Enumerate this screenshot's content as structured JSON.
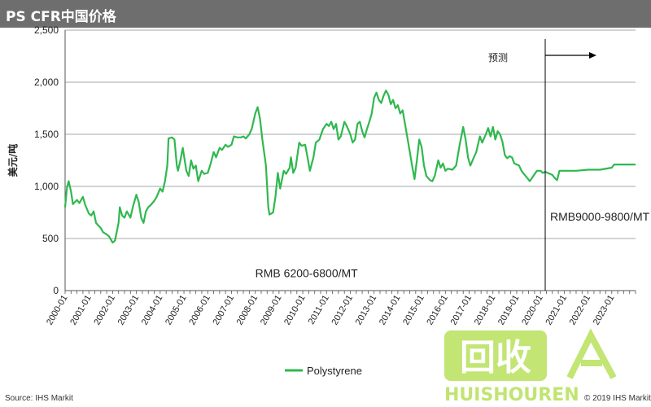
{
  "header": {
    "title": "PS CFR中国价格"
  },
  "footer": {
    "source": "Source: IHS Markit",
    "copyright": "© 2019 IHS Markit"
  },
  "watermark": {
    "text": "回收",
    "subtext": "HUISHOUREN"
  },
  "chart_data": {
    "type": "line",
    "title": "PS CFR中国价格",
    "ylabel": "美元/吨",
    "xlabel": "",
    "ylim": [
      0,
      2500
    ],
    "yticks": [
      0,
      500,
      1000,
      1500,
      2000,
      2500
    ],
    "ytick_labels": [
      "0",
      "500",
      "1,000",
      "1,500",
      "2,000",
      "2,500"
    ],
    "xlim": [
      2000.0,
      2024.0
    ],
    "xticks": [
      "2000-01",
      "2001-01",
      "2002-01",
      "2003-01",
      "2004-01",
      "2005-01",
      "2006-01",
      "2007-01",
      "2008-01",
      "2009-01",
      "2010-01",
      "2011-01",
      "2012-01",
      "2013-01",
      "2014-01",
      "2015-01",
      "2016-01",
      "2017-01",
      "2018-01",
      "2019-01",
      "2020-01",
      "2021-01",
      "2022-01",
      "2023-01"
    ],
    "gridlines": "horizontal",
    "legend": {
      "position": "bottom-center",
      "entries": [
        "Polystyrene"
      ]
    },
    "forecast_start": 2020.2,
    "annotations": {
      "forecast": "预测",
      "range_history": "RMB 6200-6800/MT",
      "range_forecast": "RMB9000-9800/MT"
    },
    "series": [
      {
        "name": "Polystyrene",
        "color": "#2fb84f",
        "points": [
          [
            2000.0,
            800
          ],
          [
            2000.08,
            990
          ],
          [
            2000.15,
            1050
          ],
          [
            2000.25,
            950
          ],
          [
            2000.33,
            830
          ],
          [
            2000.5,
            870
          ],
          [
            2000.6,
            840
          ],
          [
            2000.75,
            900
          ],
          [
            2000.85,
            820
          ],
          [
            2001.0,
            740
          ],
          [
            2001.1,
            720
          ],
          [
            2001.2,
            760
          ],
          [
            2001.3,
            650
          ],
          [
            2001.5,
            600
          ],
          [
            2001.6,
            560
          ],
          [
            2001.75,
            540
          ],
          [
            2001.85,
            520
          ],
          [
            2002.0,
            460
          ],
          [
            2002.1,
            480
          ],
          [
            2002.25,
            650
          ],
          [
            2002.3,
            800
          ],
          [
            2002.4,
            720
          ],
          [
            2002.5,
            700
          ],
          [
            2002.6,
            760
          ],
          [
            2002.75,
            700
          ],
          [
            2002.85,
            800
          ],
          [
            2003.0,
            920
          ],
          [
            2003.1,
            850
          ],
          [
            2003.2,
            700
          ],
          [
            2003.3,
            650
          ],
          [
            2003.4,
            760
          ],
          [
            2003.5,
            800
          ],
          [
            2003.6,
            820
          ],
          [
            2003.75,
            860
          ],
          [
            2003.85,
            900
          ],
          [
            2004.0,
            980
          ],
          [
            2004.1,
            950
          ],
          [
            2004.2,
            1050
          ],
          [
            2004.3,
            1200
          ],
          [
            2004.35,
            1460
          ],
          [
            2004.5,
            1470
          ],
          [
            2004.6,
            1450
          ],
          [
            2004.7,
            1200
          ],
          [
            2004.75,
            1150
          ],
          [
            2004.85,
            1250
          ],
          [
            2004.95,
            1370
          ],
          [
            2005.1,
            1150
          ],
          [
            2005.2,
            1100
          ],
          [
            2005.3,
            1250
          ],
          [
            2005.4,
            1170
          ],
          [
            2005.5,
            1200
          ],
          [
            2005.6,
            1050
          ],
          [
            2005.75,
            1150
          ],
          [
            2005.85,
            1120
          ],
          [
            2006.0,
            1130
          ],
          [
            2006.1,
            1200
          ],
          [
            2006.25,
            1330
          ],
          [
            2006.35,
            1280
          ],
          [
            2006.5,
            1370
          ],
          [
            2006.6,
            1350
          ],
          [
            2006.75,
            1400
          ],
          [
            2006.85,
            1380
          ],
          [
            2007.0,
            1400
          ],
          [
            2007.1,
            1480
          ],
          [
            2007.25,
            1470
          ],
          [
            2007.4,
            1470
          ],
          [
            2007.5,
            1480
          ],
          [
            2007.6,
            1460
          ],
          [
            2007.75,
            1500
          ],
          [
            2007.85,
            1550
          ],
          [
            2008.0,
            1700
          ],
          [
            2008.1,
            1760
          ],
          [
            2008.2,
            1650
          ],
          [
            2008.3,
            1450
          ],
          [
            2008.45,
            1200
          ],
          [
            2008.55,
            800
          ],
          [
            2008.6,
            730
          ],
          [
            2008.75,
            750
          ],
          [
            2008.85,
            900
          ],
          [
            2008.95,
            1130
          ],
          [
            2009.05,
            980
          ],
          [
            2009.2,
            1150
          ],
          [
            2009.3,
            1120
          ],
          [
            2009.45,
            1180
          ],
          [
            2009.5,
            1280
          ],
          [
            2009.6,
            1130
          ],
          [
            2009.7,
            1180
          ],
          [
            2009.85,
            1420
          ],
          [
            2009.95,
            1390
          ],
          [
            2010.1,
            1400
          ],
          [
            2010.2,
            1280
          ],
          [
            2010.3,
            1150
          ],
          [
            2010.45,
            1280
          ],
          [
            2010.55,
            1420
          ],
          [
            2010.7,
            1450
          ],
          [
            2010.85,
            1550
          ],
          [
            2011.0,
            1600
          ],
          [
            2011.1,
            1580
          ],
          [
            2011.2,
            1620
          ],
          [
            2011.3,
            1550
          ],
          [
            2011.4,
            1600
          ],
          [
            2011.5,
            1450
          ],
          [
            2011.6,
            1480
          ],
          [
            2011.75,
            1620
          ],
          [
            2011.85,
            1580
          ],
          [
            2012.0,
            1500
          ],
          [
            2012.1,
            1420
          ],
          [
            2012.2,
            1450
          ],
          [
            2012.3,
            1600
          ],
          [
            2012.4,
            1620
          ],
          [
            2012.5,
            1530
          ],
          [
            2012.6,
            1470
          ],
          [
            2012.7,
            1550
          ],
          [
            2012.8,
            1620
          ],
          [
            2012.9,
            1700
          ],
          [
            2013.0,
            1850
          ],
          [
            2013.1,
            1900
          ],
          [
            2013.2,
            1830
          ],
          [
            2013.3,
            1800
          ],
          [
            2013.4,
            1870
          ],
          [
            2013.5,
            1920
          ],
          [
            2013.6,
            1880
          ],
          [
            2013.7,
            1790
          ],
          [
            2013.8,
            1830
          ],
          [
            2013.9,
            1750
          ],
          [
            2014.0,
            1780
          ],
          [
            2014.1,
            1700
          ],
          [
            2014.2,
            1730
          ],
          [
            2014.3,
            1600
          ],
          [
            2014.45,
            1400
          ],
          [
            2014.6,
            1200
          ],
          [
            2014.7,
            1070
          ],
          [
            2014.8,
            1250
          ],
          [
            2014.9,
            1450
          ],
          [
            2015.0,
            1380
          ],
          [
            2015.1,
            1200
          ],
          [
            2015.2,
            1100
          ],
          [
            2015.35,
            1060
          ],
          [
            2015.45,
            1050
          ],
          [
            2015.55,
            1100
          ],
          [
            2015.7,
            1250
          ],
          [
            2015.8,
            1180
          ],
          [
            2015.9,
            1220
          ],
          [
            2016.0,
            1150
          ],
          [
            2016.1,
            1170
          ],
          [
            2016.3,
            1160
          ],
          [
            2016.45,
            1200
          ],
          [
            2016.6,
            1400
          ],
          [
            2016.75,
            1570
          ],
          [
            2016.85,
            1450
          ],
          [
            2016.95,
            1280
          ],
          [
            2017.05,
            1200
          ],
          [
            2017.2,
            1280
          ],
          [
            2017.3,
            1330
          ],
          [
            2017.45,
            1480
          ],
          [
            2017.55,
            1420
          ],
          [
            2017.7,
            1500
          ],
          [
            2017.8,
            1560
          ],
          [
            2017.9,
            1480
          ],
          [
            2018.0,
            1570
          ],
          [
            2018.1,
            1450
          ],
          [
            2018.2,
            1530
          ],
          [
            2018.3,
            1500
          ],
          [
            2018.4,
            1430
          ],
          [
            2018.5,
            1300
          ],
          [
            2018.6,
            1270
          ],
          [
            2018.7,
            1290
          ],
          [
            2018.8,
            1280
          ],
          [
            2018.9,
            1220
          ],
          [
            2019.0,
            1210
          ],
          [
            2019.1,
            1200
          ],
          [
            2019.2,
            1150
          ],
          [
            2019.3,
            1120
          ],
          [
            2019.45,
            1080
          ],
          [
            2019.55,
            1050
          ],
          [
            2019.7,
            1100
          ],
          [
            2019.85,
            1150
          ],
          [
            2020.0,
            1150
          ],
          [
            2020.1,
            1130
          ],
          [
            2020.2,
            1140
          ],
          [
            2020.3,
            1130
          ],
          [
            2020.5,
            1110
          ],
          [
            2020.6,
            1080
          ],
          [
            2020.7,
            1060
          ],
          [
            2020.8,
            1150
          ],
          [
            2021.0,
            1150
          ],
          [
            2021.5,
            1150
          ],
          [
            2022.0,
            1160
          ],
          [
            2022.5,
            1160
          ],
          [
            2023.0,
            1180
          ],
          [
            2023.1,
            1210
          ],
          [
            2023.5,
            1210
          ],
          [
            2024.0,
            1210
          ]
        ]
      }
    ]
  }
}
